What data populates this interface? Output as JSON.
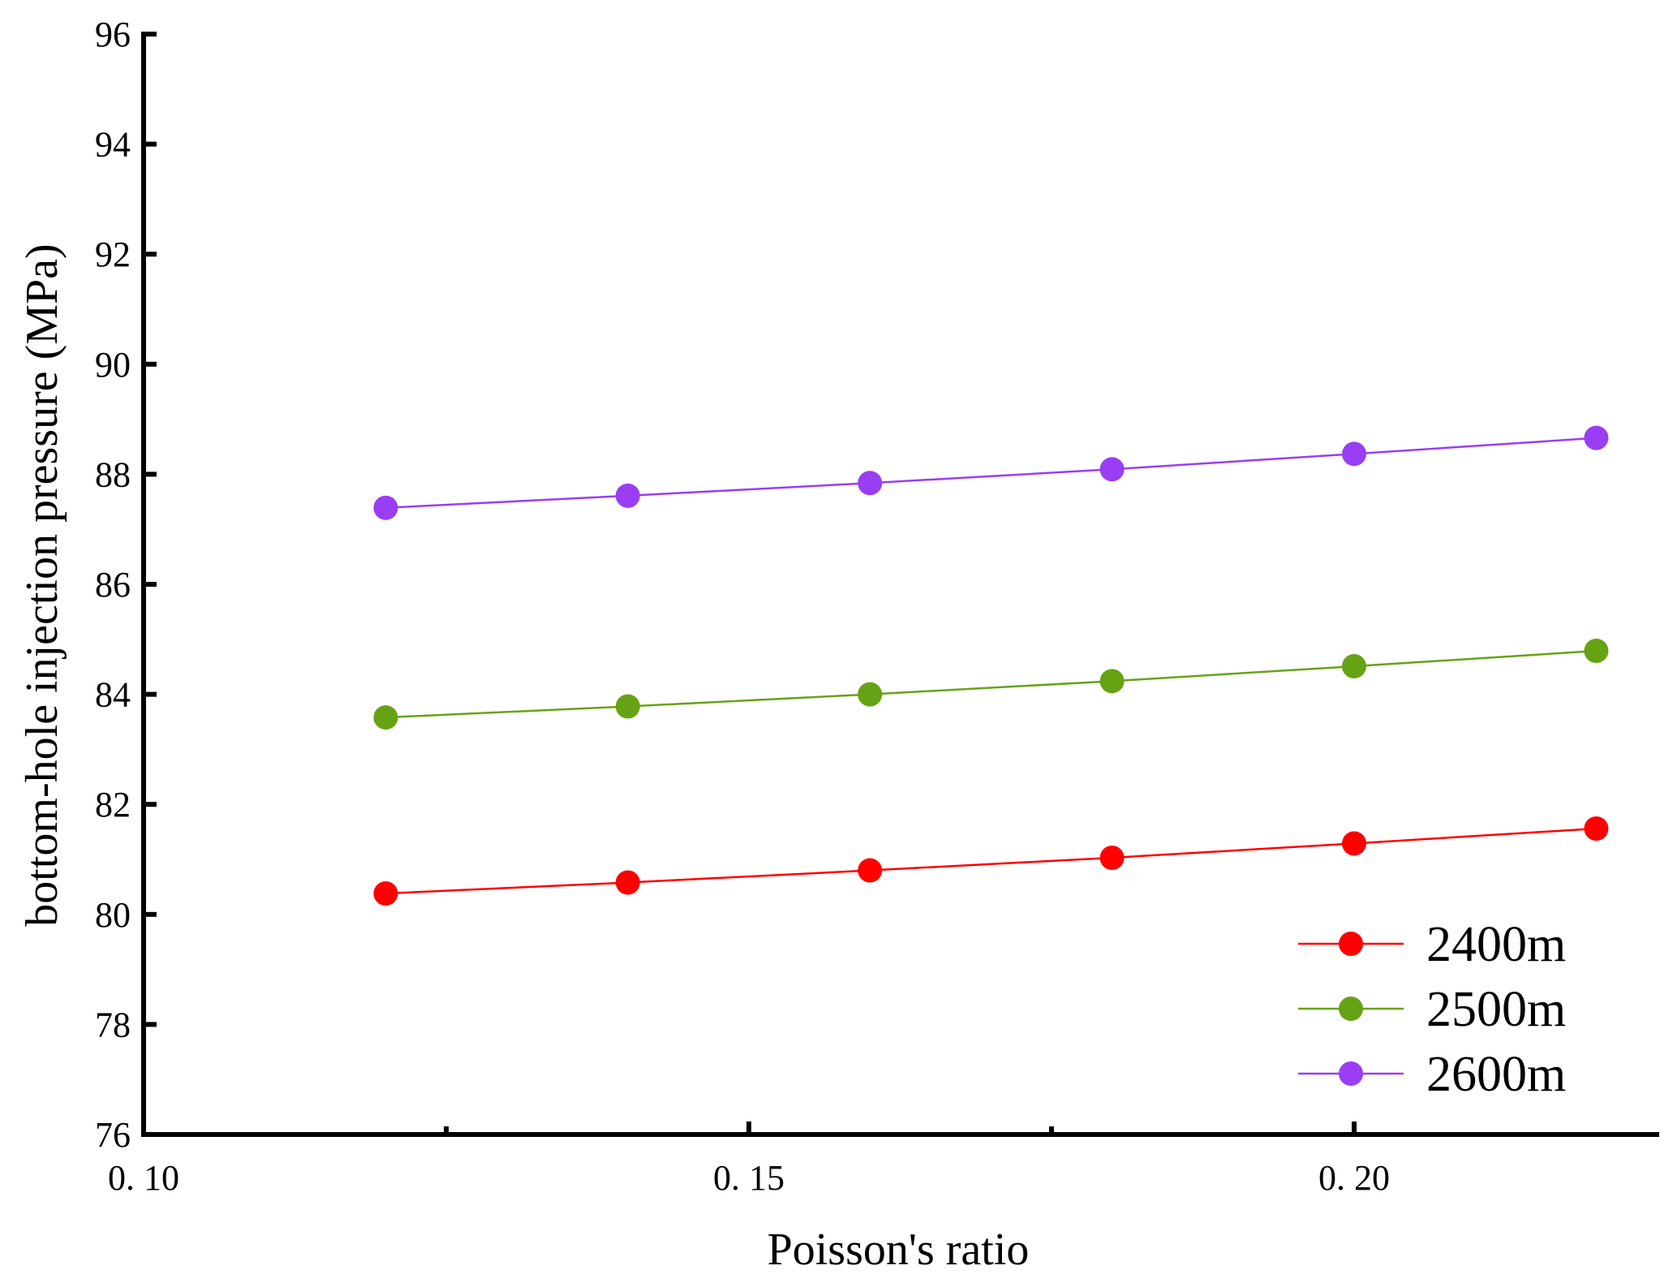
{
  "chart_data": {
    "type": "line",
    "title": "",
    "xlabel": "Poisson's ratio",
    "ylabel": "bottom-hole injection pressure (MPa)",
    "xlim": [
      0.1,
      0.225
    ],
    "ylim": [
      76,
      96
    ],
    "x_ticks": [
      0.1,
      0.15,
      0.2
    ],
    "x_tick_labels": [
      "0. 10",
      "0. 15",
      "0. 20"
    ],
    "x_minor_ticks": [
      0.125,
      0.175
    ],
    "y_ticks": [
      76,
      78,
      80,
      82,
      84,
      86,
      88,
      90,
      92,
      94,
      96
    ],
    "y_tick_labels": [
      "76",
      "78",
      "80",
      "82",
      "84",
      "86",
      "88",
      "90",
      "92",
      "94",
      "96"
    ],
    "legend_position": "bottom-right",
    "x": [
      0.12,
      0.14,
      0.16,
      0.18,
      0.2,
      0.22
    ],
    "series": [
      {
        "name": "2400m",
        "color": "#ff0000",
        "values": [
          80.38,
          80.58,
          80.8,
          81.03,
          81.29,
          81.56
        ]
      },
      {
        "name": "2500m",
        "color": "#66a314",
        "values": [
          83.58,
          83.78,
          84.0,
          84.24,
          84.51,
          84.79
        ]
      },
      {
        "name": "2600m",
        "color": "#9b3df2",
        "values": [
          87.39,
          87.61,
          87.84,
          88.09,
          88.37,
          88.66
        ]
      }
    ]
  }
}
